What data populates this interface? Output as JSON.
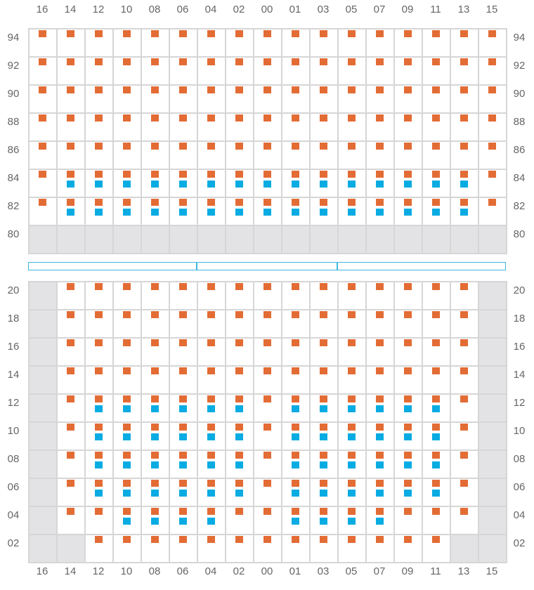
{
  "colors": {
    "orange": "#e36c35",
    "blue": "#09ace2",
    "disabled": "#e3e3e5",
    "grid": "#d6d6d6",
    "strip": "#3db7e0"
  },
  "column_labels": [
    "16",
    "14",
    "12",
    "10",
    "08",
    "06",
    "04",
    "02",
    "00",
    "01",
    "03",
    "05",
    "07",
    "09",
    "11",
    "13",
    "15"
  ],
  "top_section": {
    "rows": [
      {
        "label": "94",
        "cells": [
          "o",
          "o",
          "o",
          "o",
          "o",
          "o",
          "o",
          "o",
          "o",
          "o",
          "o",
          "o",
          "o",
          "o",
          "o",
          "o",
          "o"
        ]
      },
      {
        "label": "92",
        "cells": [
          "o",
          "o",
          "o",
          "o",
          "o",
          "o",
          "o",
          "o",
          "o",
          "o",
          "o",
          "o",
          "o",
          "o",
          "o",
          "o",
          "o"
        ]
      },
      {
        "label": "90",
        "cells": [
          "o",
          "o",
          "o",
          "o",
          "o",
          "o",
          "o",
          "o",
          "o",
          "o",
          "o",
          "o",
          "o",
          "o",
          "o",
          "o",
          "o"
        ]
      },
      {
        "label": "88",
        "cells": [
          "o",
          "o",
          "o",
          "o",
          "o",
          "o",
          "o",
          "o",
          "o",
          "o",
          "o",
          "o",
          "o",
          "o",
          "o",
          "o",
          "o"
        ]
      },
      {
        "label": "86",
        "cells": [
          "o",
          "o",
          "o",
          "o",
          "o",
          "o",
          "o",
          "o",
          "o",
          "o",
          "o",
          "o",
          "o",
          "o",
          "o",
          "o",
          "o"
        ]
      },
      {
        "label": "84",
        "cells": [
          "o",
          "ob",
          "ob",
          "ob",
          "ob",
          "ob",
          "ob",
          "ob",
          "ob",
          "ob",
          "ob",
          "ob",
          "ob",
          "ob",
          "ob",
          "ob",
          "o"
        ]
      },
      {
        "label": "82",
        "cells": [
          "o",
          "ob",
          "ob",
          "ob",
          "ob",
          "ob",
          "ob",
          "ob",
          "ob",
          "ob",
          "ob",
          "ob",
          "ob",
          "ob",
          "ob",
          "ob",
          "o"
        ]
      },
      {
        "label": "80",
        "cells": [
          "x",
          "x",
          "x",
          "x",
          "x",
          "x",
          "x",
          "x",
          "x",
          "x",
          "x",
          "x",
          "x",
          "x",
          "x",
          "x",
          "x"
        ]
      }
    ]
  },
  "bottom_section": {
    "rows": [
      {
        "label": "20",
        "cells": [
          "x",
          "o",
          "o",
          "o",
          "o",
          "o",
          "o",
          "o",
          "o",
          "o",
          "o",
          "o",
          "o",
          "o",
          "o",
          "o",
          "x"
        ]
      },
      {
        "label": "18",
        "cells": [
          "x",
          "o",
          "o",
          "o",
          "o",
          "o",
          "o",
          "o",
          "o",
          "o",
          "o",
          "o",
          "o",
          "o",
          "o",
          "o",
          "x"
        ]
      },
      {
        "label": "16",
        "cells": [
          "x",
          "o",
          "o",
          "o",
          "o",
          "o",
          "o",
          "o",
          "o",
          "o",
          "o",
          "o",
          "o",
          "o",
          "o",
          "o",
          "x"
        ]
      },
      {
        "label": "14",
        "cells": [
          "x",
          "o",
          "o",
          "o",
          "o",
          "o",
          "o",
          "o",
          "o",
          "o",
          "o",
          "o",
          "o",
          "o",
          "o",
          "o",
          "x"
        ]
      },
      {
        "label": "12",
        "cells": [
          "x",
          "o",
          "ob",
          "ob",
          "ob",
          "ob",
          "ob",
          "ob",
          "o",
          "ob",
          "ob",
          "ob",
          "ob",
          "ob",
          "ob",
          "o",
          "x"
        ]
      },
      {
        "label": "10",
        "cells": [
          "x",
          "o",
          "ob",
          "ob",
          "ob",
          "ob",
          "ob",
          "ob",
          "o",
          "ob",
          "ob",
          "ob",
          "ob",
          "ob",
          "ob",
          "o",
          "x"
        ]
      },
      {
        "label": "08",
        "cells": [
          "x",
          "o",
          "ob",
          "ob",
          "ob",
          "ob",
          "ob",
          "ob",
          "o",
          "ob",
          "ob",
          "ob",
          "ob",
          "ob",
          "ob",
          "o",
          "x"
        ]
      },
      {
        "label": "06",
        "cells": [
          "x",
          "o",
          "ob",
          "ob",
          "ob",
          "ob",
          "ob",
          "ob",
          "o",
          "ob",
          "ob",
          "ob",
          "ob",
          "ob",
          "ob",
          "o",
          "x"
        ]
      },
      {
        "label": "04",
        "cells": [
          "x",
          "o",
          "o",
          "ob",
          "ob",
          "ob",
          "ob",
          "o",
          "o",
          "ob",
          "ob",
          "ob",
          "ob",
          "o",
          "o",
          "o",
          "x"
        ]
      },
      {
        "label": "02",
        "cells": [
          "x",
          "x",
          "o",
          "o",
          "o",
          "o",
          "o",
          "o",
          "o",
          "o",
          "o",
          "o",
          "o",
          "o",
          "o",
          "x",
          "x"
        ]
      }
    ]
  }
}
